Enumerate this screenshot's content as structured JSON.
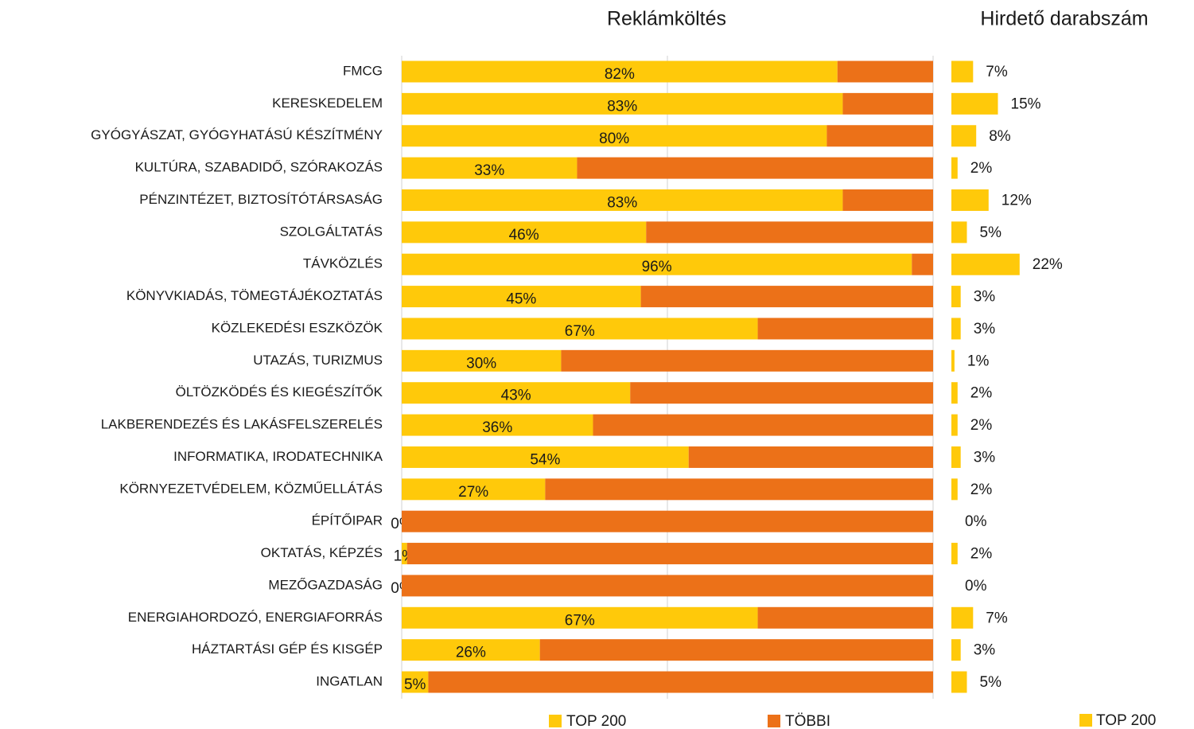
{
  "chart_data": [
    {
      "type": "stacked_bar_h",
      "title": "Reklámköltés",
      "categories": [
        "FMCG",
        "KERESKEDELEM",
        "GYÓGYÁSZAT, GYÓGYHATÁSÚ KÉSZÍTMÉNY",
        "KULTÚRA, SZABADIDŐ, SZÓRAKOZÁS",
        "PÉNZINTÉZET, BIZTOSÍTÓTÁRSASÁG",
        "SZOLGÁLTATÁS",
        "TÁVKÖZLÉS",
        "KÖNYVKIADÁS, TÖMEGTÁJÉKOZTATÁS",
        "KÖZLEKEDÉSI ESZKÖZÖK",
        "UTAZÁS, TURIZMUS",
        "ÖLTÖZKÖDÉS ÉS KIEGÉSZÍTŐK",
        "LAKBERENDEZÉS ÉS LAKÁSFELSZERELÉS",
        "INFORMATIKA, IRODATECHNIKA",
        "KÖRNYEZETVÉDELEM, KÖZMŰELLÁTÁS",
        "ÉPÍTŐIPAR",
        "OKTATÁS, KÉPZÉS",
        "MEZŐGAZDASÁG",
        "ENERGIAHORDOZÓ, ENERGIAFORRÁS",
        "HÁZTARTÁSI GÉP ÉS KISGÉP",
        "INGATLAN"
      ],
      "series": [
        {
          "name": "TOP 200",
          "color": "#ffc90a",
          "values": [
            82,
            83,
            80,
            33,
            83,
            46,
            96,
            45,
            67,
            30,
            43,
            36,
            54,
            27,
            0,
            1,
            0,
            67,
            26,
            5
          ],
          "value_labels": [
            "82%",
            "83%",
            "80%",
            "33%",
            "83%",
            "46%",
            "96%",
            "45%",
            "67%",
            "30%",
            "43%",
            "36%",
            "54%",
            "27%",
            "0%",
            "1%",
            "0%",
            "67%",
            "26%",
            "5%"
          ]
        },
        {
          "name": "TÖBBI",
          "color": "#ec7118",
          "values": [
            18,
            17,
            20,
            67,
            17,
            54,
            4,
            55,
            33,
            70,
            57,
            64,
            46,
            73,
            100,
            99,
            100,
            33,
            74,
            95
          ]
        }
      ],
      "xlim": [
        0,
        100
      ],
      "xticks": [
        0,
        50,
        100
      ],
      "grid": true,
      "legend": "bottom"
    },
    {
      "type": "bar_h",
      "title": "Hirdető darabszám",
      "series": [
        {
          "name": "TOP 200",
          "color": "#ffc90a",
          "values": [
            7,
            15,
            8,
            2,
            12,
            5,
            22,
            3,
            3,
            1,
            2,
            2,
            3,
            2,
            0,
            2,
            0,
            7,
            3,
            5
          ],
          "value_labels": [
            "7%",
            "15%",
            "8%",
            "2%",
            "12%",
            "5%",
            "22%",
            "3%",
            "3%",
            "1%",
            "2%",
            "2%",
            "3%",
            "2%",
            "0%",
            "2%",
            "0%",
            "7%",
            "3%",
            "5%"
          ]
        }
      ],
      "xlim": [
        0,
        70
      ],
      "legend": "bottom-right"
    }
  ]
}
